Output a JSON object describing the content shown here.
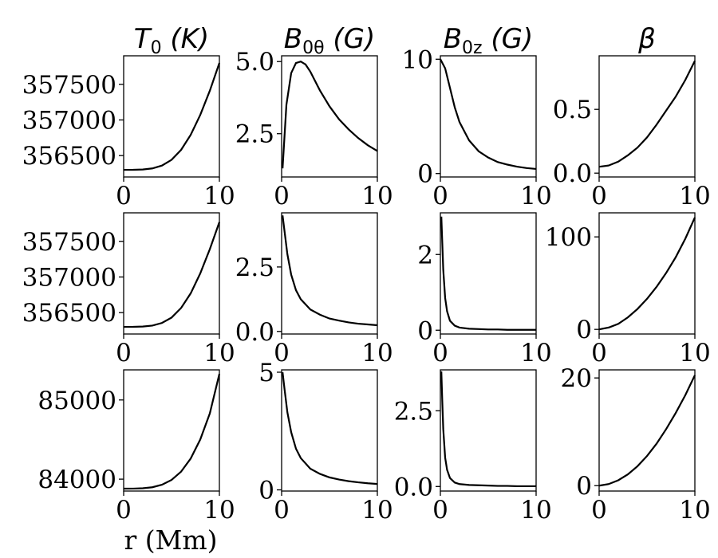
{
  "chart_data": {
    "type": "line",
    "grid": false,
    "xlabel": "r (Mm)",
    "columns": [
      {
        "title_main": "T",
        "title_sub": "0",
        "title_unit": " (K)"
      },
      {
        "title_main": "B",
        "title_sub": "0θ",
        "title_unit": " (G)"
      },
      {
        "title_main": "B",
        "title_sub": "0z",
        "title_unit": " (G)"
      },
      {
        "title_main": "β",
        "title_sub": "",
        "title_unit": ""
      }
    ],
    "panels": [
      {
        "row": 0,
        "col": 0,
        "quantity": "T0",
        "xlim": [
          0,
          10
        ],
        "ylim": [
          356200,
          357900
        ],
        "xticks": [
          0,
          10
        ],
        "yticks": [
          356500,
          357000,
          357500
        ],
        "x": [
          0,
          1,
          2,
          3,
          4,
          5,
          6,
          7,
          8,
          9,
          10
        ],
        "y": [
          356300,
          356301,
          356305,
          356320,
          356360,
          356440,
          356580,
          356790,
          357070,
          357410,
          357800
        ]
      },
      {
        "row": 0,
        "col": 1,
        "quantity": "B0theta",
        "xlim": [
          0,
          10
        ],
        "ylim": [
          1.0,
          5.2
        ],
        "xticks": [
          0,
          10
        ],
        "yticks": [
          2.5,
          5.0
        ],
        "x": [
          0.1,
          0.5,
          1,
          1.5,
          2,
          2.5,
          3,
          4,
          5,
          6,
          7,
          8,
          9,
          10
        ],
        "y": [
          1.3,
          3.5,
          4.6,
          4.95,
          5.0,
          4.9,
          4.65,
          4.0,
          3.45,
          3.0,
          2.65,
          2.35,
          2.1,
          1.9
        ]
      },
      {
        "row": 0,
        "col": 2,
        "quantity": "B0z",
        "xlim": [
          0,
          10
        ],
        "ylim": [
          -0.3,
          10.3
        ],
        "xticks": [
          0,
          10
        ],
        "yticks": [
          0,
          10
        ],
        "x": [
          0,
          0.5,
          1,
          1.5,
          2,
          3,
          4,
          5,
          6,
          7,
          8,
          9,
          10
        ],
        "y": [
          10,
          9.2,
          7.5,
          5.8,
          4.5,
          2.9,
          1.95,
          1.4,
          1.0,
          0.78,
          0.6,
          0.48,
          0.4
        ]
      },
      {
        "row": 0,
        "col": 3,
        "quantity": "beta",
        "xlim": [
          0,
          10
        ],
        "ylim": [
          -0.03,
          0.92
        ],
        "xticks": [
          0,
          10
        ],
        "yticks": [
          0.0,
          0.5
        ],
        "x": [
          0,
          1,
          2,
          3,
          4,
          5,
          6,
          7,
          8,
          9,
          10
        ],
        "y": [
          0.05,
          0.06,
          0.09,
          0.14,
          0.2,
          0.28,
          0.38,
          0.49,
          0.6,
          0.73,
          0.88
        ]
      },
      {
        "row": 1,
        "col": 0,
        "quantity": "T0",
        "xlim": [
          0,
          10
        ],
        "ylim": [
          356200,
          357900
        ],
        "xticks": [
          0,
          10
        ],
        "yticks": [
          356500,
          357000,
          357500
        ],
        "x": [
          0,
          1,
          2,
          3,
          4,
          5,
          6,
          7,
          8,
          9,
          10
        ],
        "y": [
          356300,
          356301,
          356305,
          356318,
          356355,
          356430,
          356565,
          356770,
          357050,
          357390,
          357770
        ]
      },
      {
        "row": 1,
        "col": 1,
        "quantity": "B0theta",
        "xlim": [
          0,
          10
        ],
        "ylim": [
          -0.1,
          4.6
        ],
        "xticks": [
          0,
          10
        ],
        "yticks": [
          0.0,
          2.5
        ],
        "x": [
          0.1,
          0.3,
          0.6,
          1,
          1.5,
          2,
          3,
          4,
          5,
          6,
          7,
          8,
          9,
          10
        ],
        "y": [
          4.5,
          3.9,
          3.0,
          2.2,
          1.6,
          1.25,
          0.85,
          0.65,
          0.5,
          0.42,
          0.35,
          0.3,
          0.27,
          0.24
        ]
      },
      {
        "row": 1,
        "col": 2,
        "quantity": "B0z",
        "xlim": [
          0,
          10
        ],
        "ylim": [
          -0.1,
          3.1
        ],
        "xticks": [
          0,
          10
        ],
        "yticks": [
          0,
          2
        ],
        "x": [
          0.1,
          0.2,
          0.3,
          0.5,
          0.7,
          1,
          1.5,
          2,
          3,
          4,
          5,
          6,
          7,
          8,
          9,
          10
        ],
        "y": [
          3.0,
          2.3,
          1.6,
          0.85,
          0.5,
          0.25,
          0.12,
          0.07,
          0.04,
          0.03,
          0.02,
          0.02,
          0.01,
          0.01,
          0.01,
          0.01
        ]
      },
      {
        "row": 1,
        "col": 3,
        "quantity": "beta",
        "xlim": [
          0,
          10
        ],
        "ylim": [
          -5,
          126
        ],
        "xticks": [
          0,
          10
        ],
        "yticks": [
          0,
          100
        ],
        "x": [
          0,
          1,
          2,
          3,
          4,
          5,
          6,
          7,
          8,
          9,
          10
        ],
        "y": [
          0,
          2,
          6,
          13,
          22,
          33,
          46,
          61,
          78,
          98,
          121
        ]
      },
      {
        "row": 2,
        "col": 0,
        "quantity": "T0",
        "xlim": [
          0,
          10
        ],
        "ylim": [
          83850,
          85380
        ],
        "xticks": [
          0,
          10
        ],
        "yticks": [
          84000,
          85000
        ],
        "x": [
          0,
          1,
          2,
          3,
          4,
          5,
          6,
          7,
          8,
          9,
          10
        ],
        "y": [
          83880,
          83881,
          83885,
          83898,
          83930,
          83990,
          84095,
          84260,
          84500,
          84830,
          85330
        ]
      },
      {
        "row": 2,
        "col": 1,
        "quantity": "B0theta",
        "xlim": [
          0,
          10
        ],
        "ylim": [
          -0.05,
          5.1
        ],
        "xticks": [
          0,
          10
        ],
        "yticks": [
          0,
          5
        ],
        "x": [
          0.1,
          0.3,
          0.6,
          1,
          1.5,
          2,
          3,
          4,
          5,
          6,
          7,
          8,
          9,
          10
        ],
        "y": [
          5.0,
          4.3,
          3.3,
          2.45,
          1.75,
          1.35,
          0.9,
          0.68,
          0.53,
          0.44,
          0.37,
          0.32,
          0.28,
          0.25
        ]
      },
      {
        "row": 2,
        "col": 2,
        "quantity": "B0z",
        "xlim": [
          0,
          10
        ],
        "ylim": [
          -0.15,
          3.85
        ],
        "xticks": [
          0,
          10
        ],
        "yticks": [
          0.0,
          2.5
        ],
        "x": [
          0.1,
          0.2,
          0.3,
          0.5,
          0.7,
          1,
          1.5,
          2,
          3,
          4,
          5,
          6,
          7,
          8,
          9,
          10
        ],
        "y": [
          3.8,
          2.8,
          1.9,
          0.95,
          0.55,
          0.28,
          0.13,
          0.08,
          0.05,
          0.04,
          0.03,
          0.02,
          0.02,
          0.01,
          0.01,
          0.01
        ]
      },
      {
        "row": 2,
        "col": 3,
        "quantity": "beta",
        "xlim": [
          0,
          10
        ],
        "ylim": [
          -1,
          21.5
        ],
        "xticks": [
          0,
          10
        ],
        "yticks": [
          0,
          20
        ],
        "x": [
          0,
          1,
          2,
          3,
          4,
          5,
          6,
          7,
          8,
          9,
          10
        ],
        "y": [
          0,
          0.3,
          1.0,
          2.1,
          3.6,
          5.5,
          7.8,
          10.5,
          13.5,
          16.8,
          20.5
        ]
      }
    ]
  }
}
